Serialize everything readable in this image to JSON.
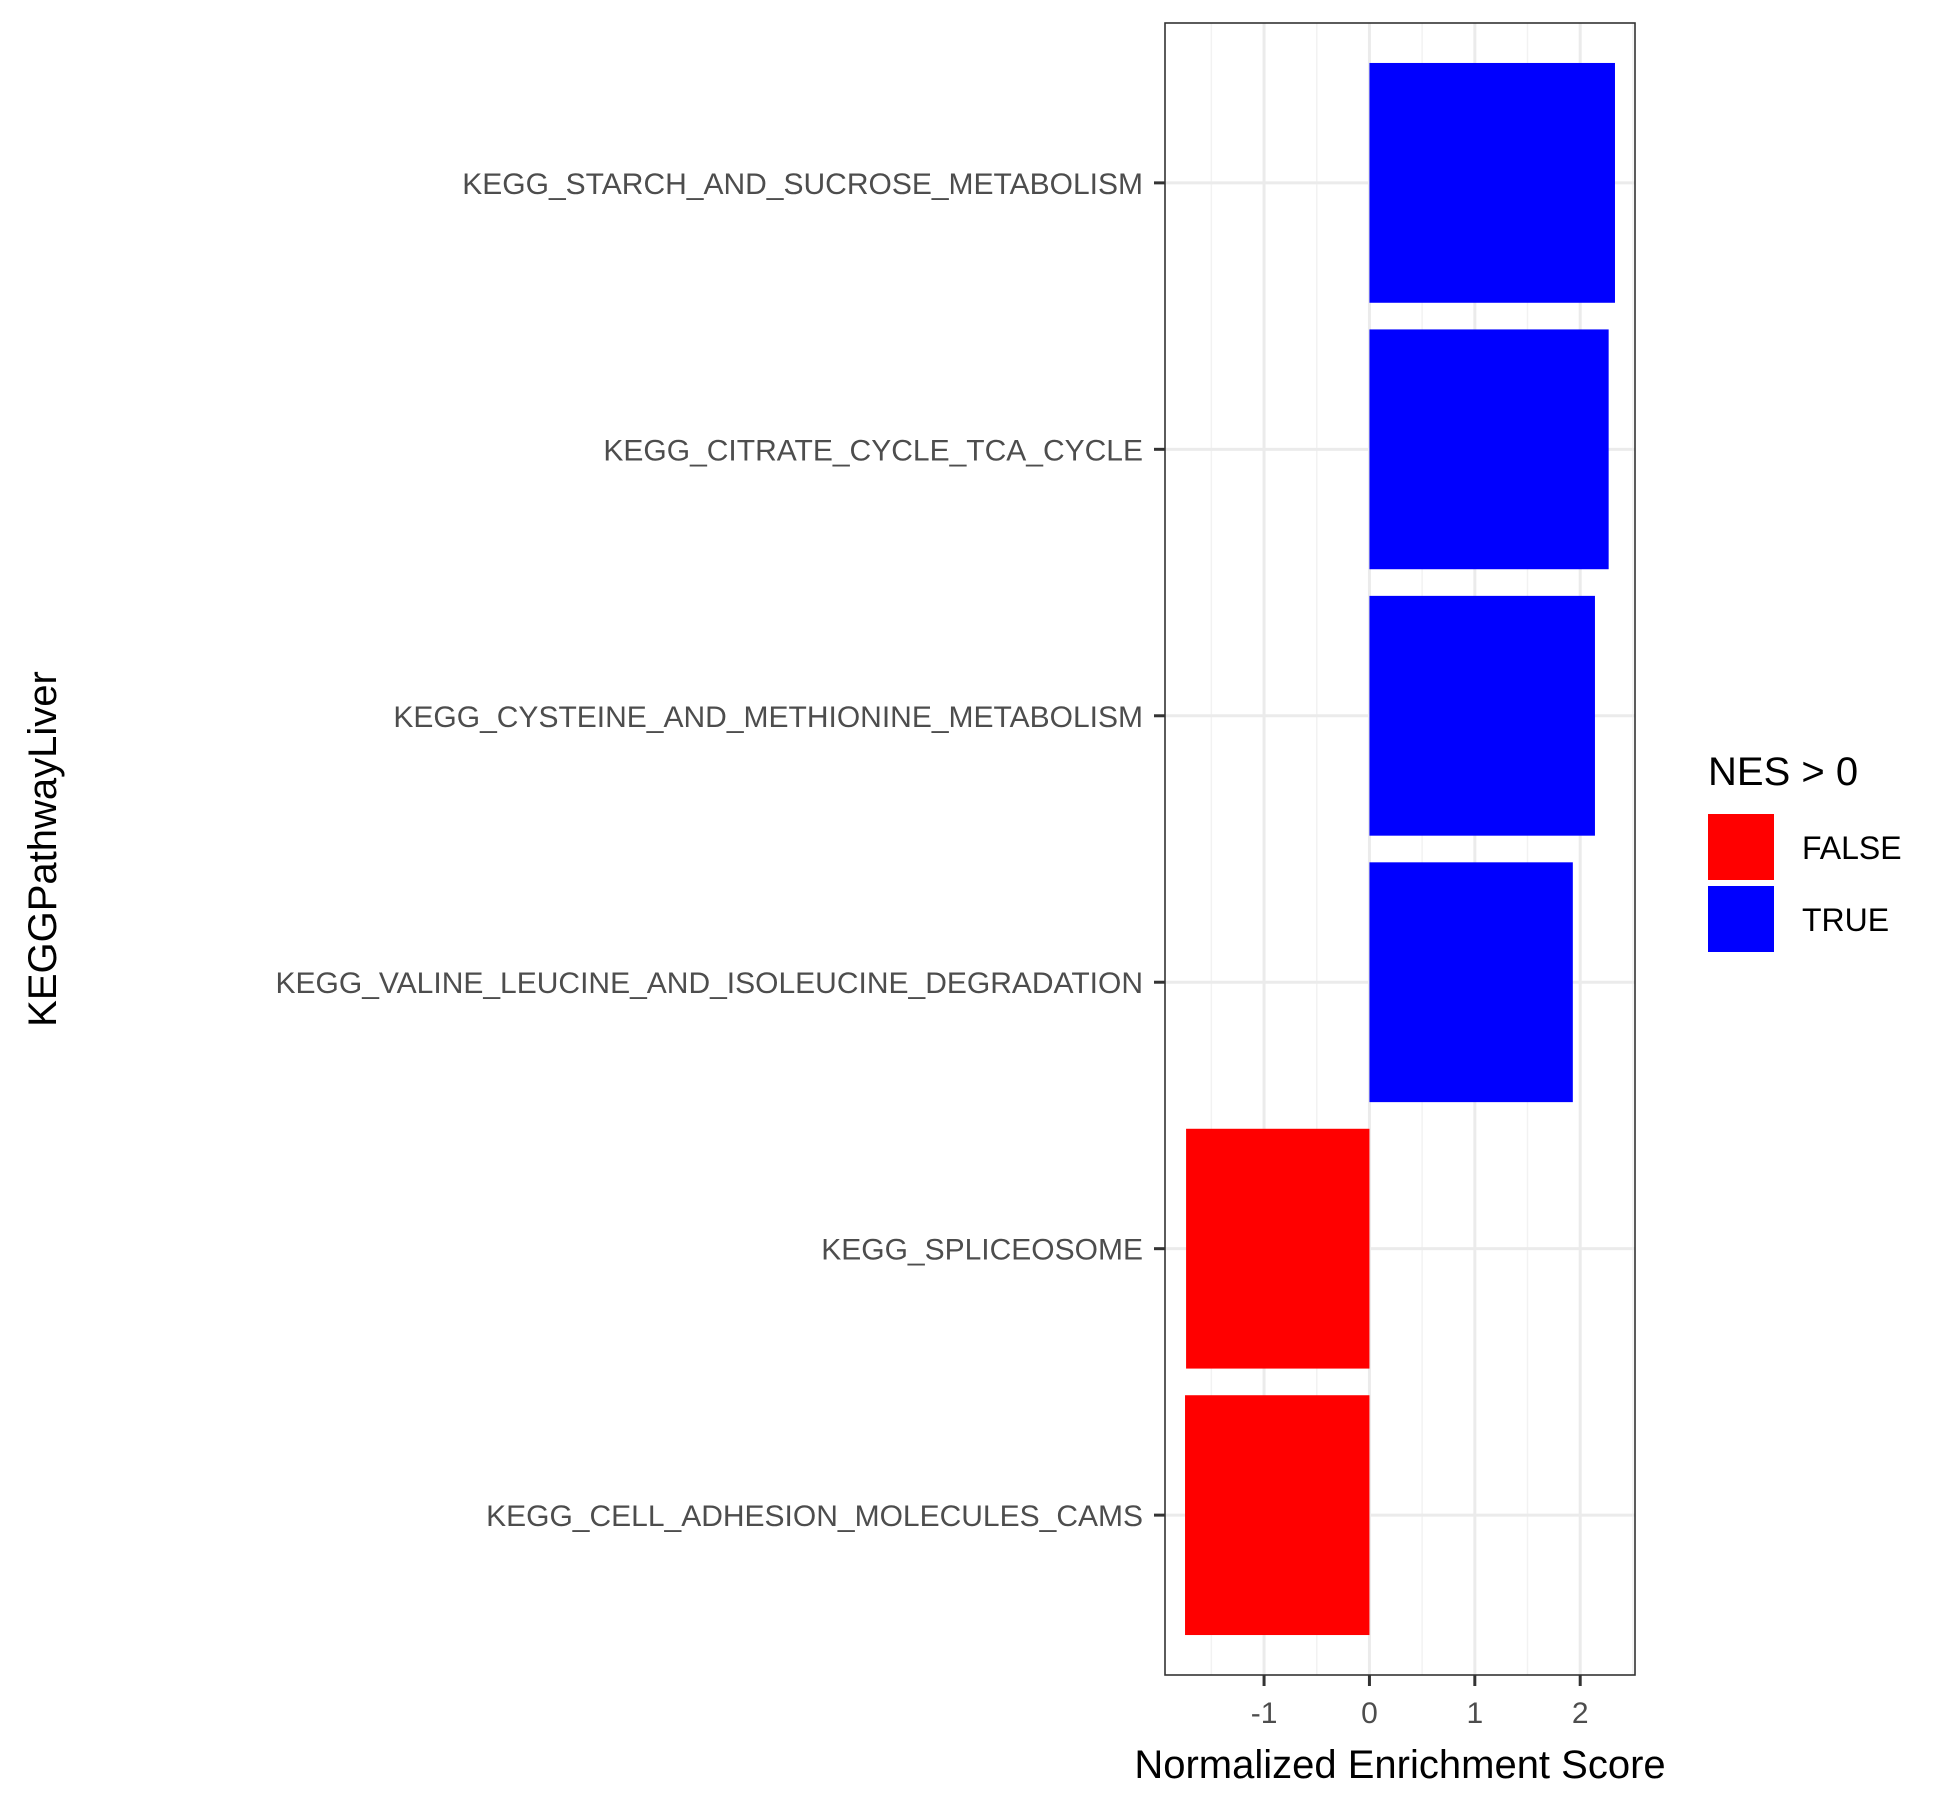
{
  "chart_data": {
    "type": "bar",
    "orientation": "horizontal",
    "categories": [
      "KEGG_STARCH_AND_SUCROSE_METABOLISM",
      "KEGG_CITRATE_CYCLE_TCA_CYCLE",
      "KEGG_CYSTEINE_AND_METHIONINE_METABOLISM",
      "KEGG_VALINE_LEUCINE_AND_ISOLEUCINE_DEGRADATION",
      "KEGG_SPLICEOSOME",
      "KEGG_CELL_ADHESION_MOLECULES_CAMS"
    ],
    "values": [
      2.33,
      2.27,
      2.14,
      1.93,
      -1.74,
      -1.75
    ],
    "fill_group": [
      "TRUE",
      "TRUE",
      "TRUE",
      "TRUE",
      "FALSE",
      "FALSE"
    ],
    "xlabel": "Normalized Enrichment Score",
    "ylabel": "KEGGPathwayLiver",
    "xlim": [
      -1.94,
      2.52
    ],
    "x_ticks": [
      -1,
      0,
      1,
      2
    ],
    "x_tick_labels": [
      "-1",
      "0",
      "1",
      "2"
    ],
    "grid": true,
    "legend": {
      "title": "NES > 0",
      "placement": "right",
      "entries": [
        {
          "label": "FALSE",
          "color": "#ff0000"
        },
        {
          "label": "TRUE",
          "color": "#0000ff"
        }
      ]
    }
  }
}
